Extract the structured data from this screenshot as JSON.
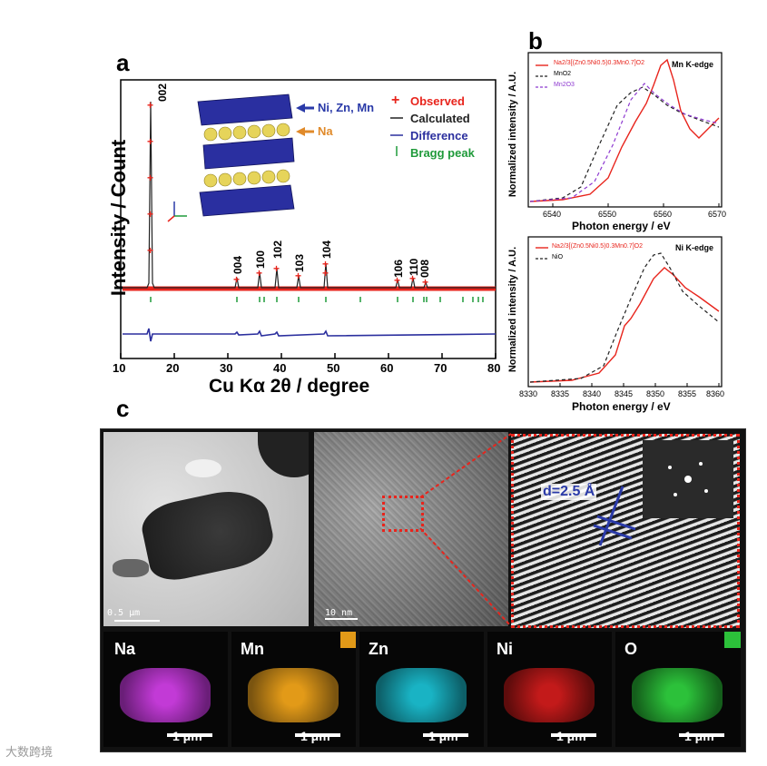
{
  "panel_labels": {
    "a": "a",
    "b": "b",
    "c": "c"
  },
  "panel_a": {
    "ylabel": "Intensity / Count",
    "xlabel": "Cu Kα 2θ / degree",
    "x_ticks": [
      "10",
      "20",
      "30",
      "40",
      "50",
      "60",
      "70",
      "80"
    ],
    "peak_labels": [
      "002",
      "004",
      "100",
      "102",
      "103",
      "104",
      "106",
      "110",
      "008"
    ],
    "legend": {
      "observed": "Observed",
      "calculated": "Calculated",
      "difference": "Difference",
      "bragg": "Bragg peak"
    },
    "structure_labels": {
      "tm": "Ni, Zn, Mn",
      "na": "Na"
    },
    "colors": {
      "observed": "#e8241c",
      "calculated": "#222222",
      "difference": "#2b2f9e",
      "bragg": "#1f9a3a",
      "tm_label": "#2a3aa8",
      "na_label": "#e08a2a"
    }
  },
  "panel_b_top": {
    "ylabel": "Normalized intensity / A.U.",
    "xlabel": "Photon energy / eV",
    "edge_label": "Mn K-edge",
    "x_ticks": [
      "6540",
      "6550",
      "6560",
      "6570"
    ],
    "legend": [
      "Na2/3[(Zn0.5Ni0.5)0.3Mn0.7]O2",
      "MnO2",
      "Mn2O3"
    ]
  },
  "panel_b_bottom": {
    "ylabel": "Normalized intensity / A.U.",
    "xlabel": "Photon energy / eV",
    "edge_label": "Ni K-edge",
    "x_ticks": [
      "8330",
      "8335",
      "8340",
      "8345",
      "8350",
      "8355",
      "8360"
    ],
    "legend": [
      "Na2/3[(Zn0.5Ni0.5)0.3Mn0.7]O2",
      "NiO"
    ]
  },
  "panel_c": {
    "tem_scale": "0.5 μm",
    "hrtem_scale": "10 nm",
    "d_spacing": "d=2.5 Å",
    "eds": [
      {
        "label": "Na",
        "color": "#c23ad6",
        "scale": "1 μm"
      },
      {
        "label": "Mn",
        "color": "#e29a18",
        "scale": "1 μm"
      },
      {
        "label": "Zn",
        "color": "#19b3c4",
        "scale": "1 μm"
      },
      {
        "label": "Ni",
        "color": "#c31a1a",
        "scale": "1 μm"
      },
      {
        "label": "O",
        "color": "#2cc13a",
        "scale": "1 μm"
      }
    ]
  },
  "watermark": "大数跨境"
}
